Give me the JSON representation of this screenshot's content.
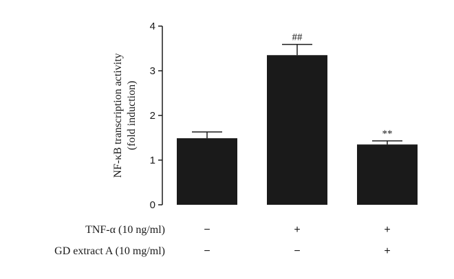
{
  "chart_data": {
    "type": "bar",
    "ylabel_line1": "NF-κB transcription activity",
    "ylabel_line2": "(fold induction)",
    "ylim": [
      0,
      4
    ],
    "yticks": [
      "0",
      "1",
      "2",
      "3",
      "4"
    ],
    "bars": [
      {
        "value": 1.49,
        "error": 0.14,
        "significance": ""
      },
      {
        "value": 3.35,
        "error": 0.24,
        "significance": "##"
      },
      {
        "value": 1.35,
        "error": 0.08,
        "significance": "**"
      }
    ],
    "bar_color": "#1a1a1a",
    "conditions": [
      {
        "label": "TNF-α (10 ng/ml)",
        "marks": [
          "−",
          "+",
          "+"
        ]
      },
      {
        "label": "GD extract A (10 mg/ml)",
        "marks": [
          "−",
          "−",
          "+"
        ]
      }
    ]
  }
}
